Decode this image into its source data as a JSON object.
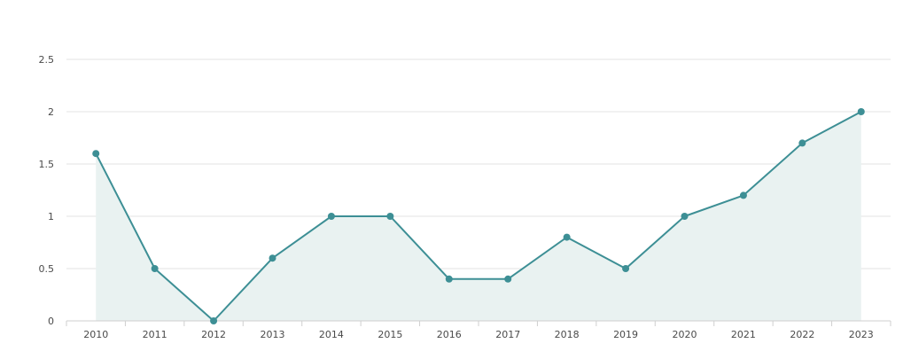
{
  "colors": {
    "line": "#3d8f95",
    "area": "#e9f2f1",
    "grid": "#e3e3e3",
    "axis": "#cfcfcf",
    "text": "#4a4a4a"
  },
  "chart_data": {
    "type": "area",
    "title": "",
    "xlabel": "",
    "ylabel": "",
    "categories": [
      "2010",
      "2011",
      "2012",
      "2013",
      "2014",
      "2015",
      "2016",
      "2017",
      "2018",
      "2019",
      "2020",
      "2021",
      "2022",
      "2023"
    ],
    "series": [
      {
        "values": [
          1.6,
          0.5,
          0.0,
          0.6,
          1.0,
          1.0,
          0.4,
          0.4,
          0.8,
          0.5,
          1.0,
          1.2,
          1.7,
          2.0
        ]
      }
    ],
    "ylim": [
      0,
      2.5
    ],
    "yticks": [
      "0",
      "0.5",
      "1",
      "1.5",
      "2",
      "2.5"
    ],
    "grid": true,
    "legend": "none"
  }
}
